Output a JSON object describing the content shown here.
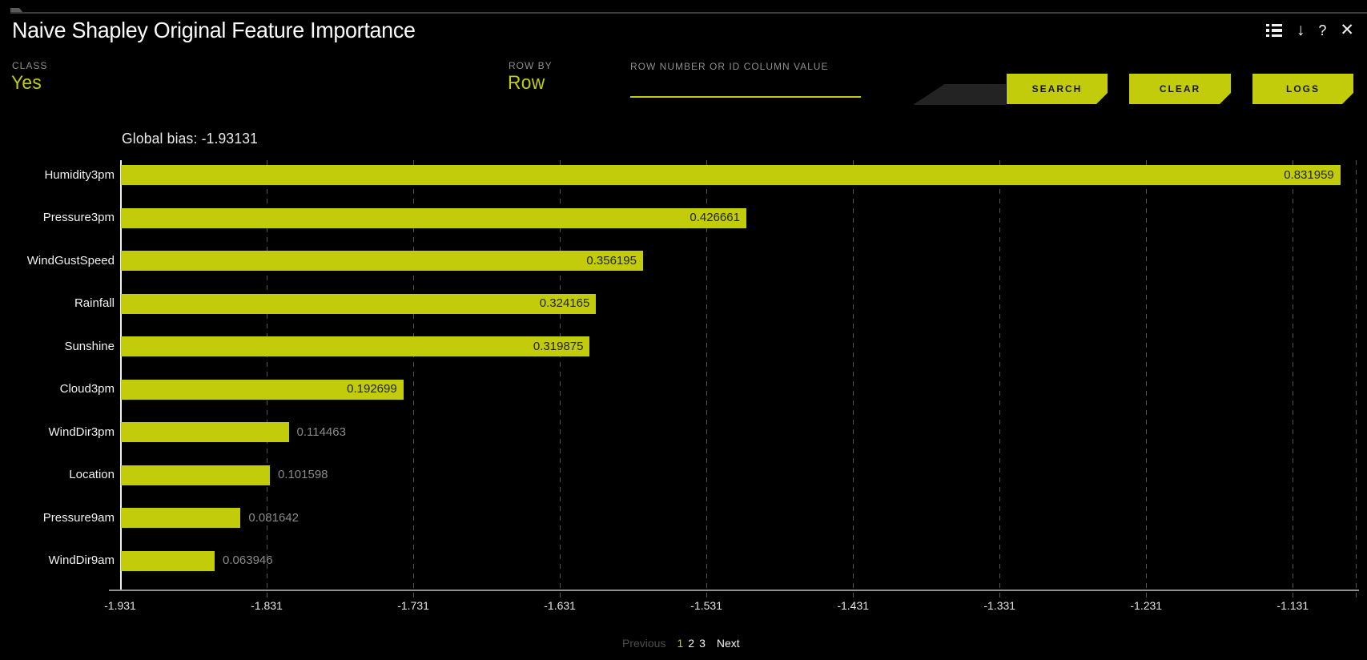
{
  "header": {
    "title": "Naive Shapley Original Feature Importance",
    "icons": {
      "list": "list-options-icon",
      "download_glyph": "↓",
      "help_glyph": "?",
      "close_glyph": "✕"
    }
  },
  "controls": {
    "class_field": {
      "label": "CLASS",
      "value": "Yes"
    },
    "row_by_field": {
      "label": "ROW BY",
      "value": "Row"
    },
    "row_input": {
      "label": "ROW NUMBER OR ID COLUMN VALUE",
      "value": "",
      "placeholder": ""
    },
    "buttons": {
      "search": "SEARCH",
      "clear": "CLEAR",
      "logs": "LOGS"
    }
  },
  "chart_data": {
    "type": "bar",
    "orientation": "horizontal",
    "title": "Global bias: -1.93131",
    "global_bias": -1.93131,
    "categories": [
      "Humidity3pm",
      "Pressure3pm",
      "WindGustSpeed",
      "Rainfall",
      "Sunshine",
      "Cloud3pm",
      "WindDir3pm",
      "Location",
      "Pressure9am",
      "WindDir9am"
    ],
    "values": [
      0.831959,
      0.426661,
      0.356195,
      0.324165,
      0.319875,
      0.192699,
      0.114463,
      0.101598,
      0.081642,
      0.063946
    ],
    "value_labels": [
      "0.831959",
      "0.426661",
      "0.356195",
      "0.324165",
      "0.319875",
      "0.192699",
      "0.114463",
      "0.101598",
      "0.081642",
      "0.063946"
    ],
    "x_axis": {
      "min": -1.931,
      "max": -1.088,
      "tick_values": [
        -1.931,
        -1.831,
        -1.731,
        -1.631,
        -1.531,
        -1.431,
        -1.331,
        -1.231,
        -1.131
      ],
      "tick_labels": [
        "-1.931",
        "-1.831",
        "-1.731",
        "-1.631",
        "-1.531",
        "-1.431",
        "-1.331",
        "-1.231",
        "-1.131"
      ],
      "gridlines": true
    },
    "legend": null
  },
  "pagination": {
    "previous": "Previous",
    "pages": [
      "1",
      "2",
      "3"
    ],
    "current_page": "1",
    "next": "Next"
  },
  "colors": {
    "background": "#000000",
    "accent": "#c2cc0a",
    "bar": "#c2cc0a",
    "grid": "#545454",
    "axis": "#8f8f8f",
    "value_inside_text": "#23250a",
    "value_outside_text": "#8a8a8a",
    "label_gray": "#8f8f8f",
    "disabled_text": "#4d4d4d"
  }
}
